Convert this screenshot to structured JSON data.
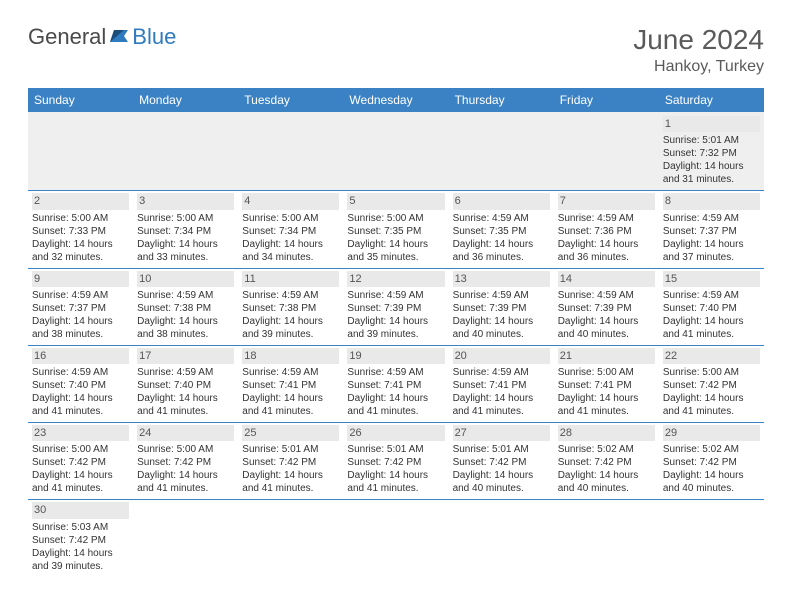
{
  "logo": {
    "text1": "General",
    "text2": "Blue"
  },
  "title": "June 2024",
  "location": "Hankoy, Turkey",
  "daysOfWeek": [
    "Sunday",
    "Monday",
    "Tuesday",
    "Wednesday",
    "Thursday",
    "Friday",
    "Saturday"
  ],
  "colors": {
    "headerBg": "#3b82c4",
    "headerText": "#ffffff",
    "dayNumBg": "#e9e9e9",
    "borderColor": "#3b82c4",
    "logoBlue": "#2f7bbf",
    "titleColor": "#5a5a5a"
  },
  "weeks": [
    [
      null,
      null,
      null,
      null,
      null,
      null,
      {
        "n": "1",
        "sr": "5:01 AM",
        "ss": "7:32 PM",
        "dl": "14 hours and 31 minutes."
      }
    ],
    [
      {
        "n": "2",
        "sr": "5:00 AM",
        "ss": "7:33 PM",
        "dl": "14 hours and 32 minutes."
      },
      {
        "n": "3",
        "sr": "5:00 AM",
        "ss": "7:34 PM",
        "dl": "14 hours and 33 minutes."
      },
      {
        "n": "4",
        "sr": "5:00 AM",
        "ss": "7:34 PM",
        "dl": "14 hours and 34 minutes."
      },
      {
        "n": "5",
        "sr": "5:00 AM",
        "ss": "7:35 PM",
        "dl": "14 hours and 35 minutes."
      },
      {
        "n": "6",
        "sr": "4:59 AM",
        "ss": "7:35 PM",
        "dl": "14 hours and 36 minutes."
      },
      {
        "n": "7",
        "sr": "4:59 AM",
        "ss": "7:36 PM",
        "dl": "14 hours and 36 minutes."
      },
      {
        "n": "8",
        "sr": "4:59 AM",
        "ss": "7:37 PM",
        "dl": "14 hours and 37 minutes."
      }
    ],
    [
      {
        "n": "9",
        "sr": "4:59 AM",
        "ss": "7:37 PM",
        "dl": "14 hours and 38 minutes."
      },
      {
        "n": "10",
        "sr": "4:59 AM",
        "ss": "7:38 PM",
        "dl": "14 hours and 38 minutes."
      },
      {
        "n": "11",
        "sr": "4:59 AM",
        "ss": "7:38 PM",
        "dl": "14 hours and 39 minutes."
      },
      {
        "n": "12",
        "sr": "4:59 AM",
        "ss": "7:39 PM",
        "dl": "14 hours and 39 minutes."
      },
      {
        "n": "13",
        "sr": "4:59 AM",
        "ss": "7:39 PM",
        "dl": "14 hours and 40 minutes."
      },
      {
        "n": "14",
        "sr": "4:59 AM",
        "ss": "7:39 PM",
        "dl": "14 hours and 40 minutes."
      },
      {
        "n": "15",
        "sr": "4:59 AM",
        "ss": "7:40 PM",
        "dl": "14 hours and 41 minutes."
      }
    ],
    [
      {
        "n": "16",
        "sr": "4:59 AM",
        "ss": "7:40 PM",
        "dl": "14 hours and 41 minutes."
      },
      {
        "n": "17",
        "sr": "4:59 AM",
        "ss": "7:40 PM",
        "dl": "14 hours and 41 minutes."
      },
      {
        "n": "18",
        "sr": "4:59 AM",
        "ss": "7:41 PM",
        "dl": "14 hours and 41 minutes."
      },
      {
        "n": "19",
        "sr": "4:59 AM",
        "ss": "7:41 PM",
        "dl": "14 hours and 41 minutes."
      },
      {
        "n": "20",
        "sr": "4:59 AM",
        "ss": "7:41 PM",
        "dl": "14 hours and 41 minutes."
      },
      {
        "n": "21",
        "sr": "5:00 AM",
        "ss": "7:41 PM",
        "dl": "14 hours and 41 minutes."
      },
      {
        "n": "22",
        "sr": "5:00 AM",
        "ss": "7:42 PM",
        "dl": "14 hours and 41 minutes."
      }
    ],
    [
      {
        "n": "23",
        "sr": "5:00 AM",
        "ss": "7:42 PM",
        "dl": "14 hours and 41 minutes."
      },
      {
        "n": "24",
        "sr": "5:00 AM",
        "ss": "7:42 PM",
        "dl": "14 hours and 41 minutes."
      },
      {
        "n": "25",
        "sr": "5:01 AM",
        "ss": "7:42 PM",
        "dl": "14 hours and 41 minutes."
      },
      {
        "n": "26",
        "sr": "5:01 AM",
        "ss": "7:42 PM",
        "dl": "14 hours and 41 minutes."
      },
      {
        "n": "27",
        "sr": "5:01 AM",
        "ss": "7:42 PM",
        "dl": "14 hours and 40 minutes."
      },
      {
        "n": "28",
        "sr": "5:02 AM",
        "ss": "7:42 PM",
        "dl": "14 hours and 40 minutes."
      },
      {
        "n": "29",
        "sr": "5:02 AM",
        "ss": "7:42 PM",
        "dl": "14 hours and 40 minutes."
      }
    ],
    [
      {
        "n": "30",
        "sr": "5:03 AM",
        "ss": "7:42 PM",
        "dl": "14 hours and 39 minutes."
      },
      null,
      null,
      null,
      null,
      null,
      null
    ]
  ],
  "labels": {
    "sunrise": "Sunrise: ",
    "sunset": "Sunset: ",
    "daylight": "Daylight: "
  }
}
